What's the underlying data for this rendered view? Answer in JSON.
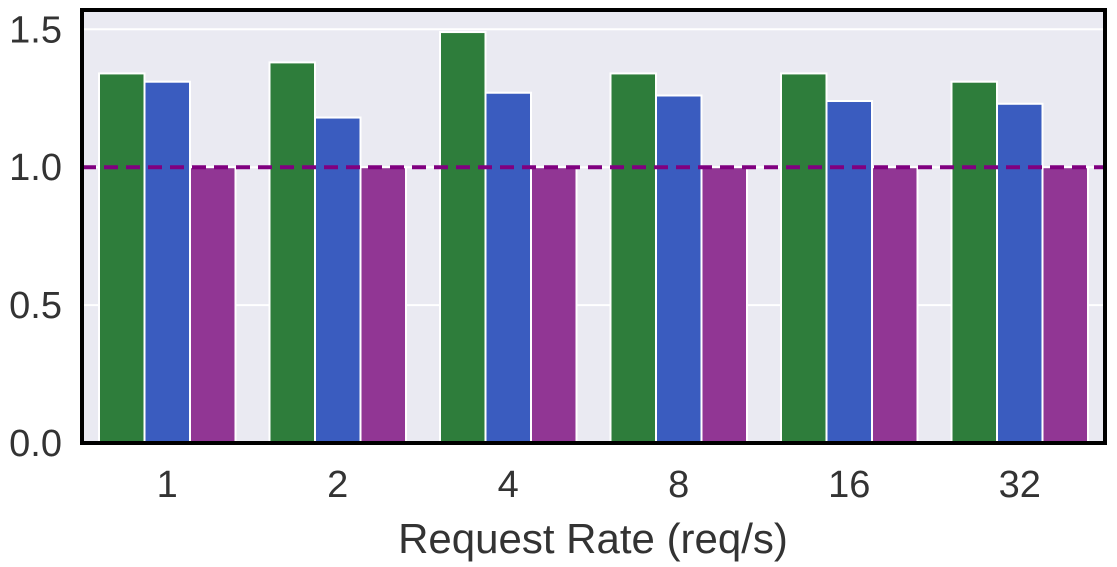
{
  "chart_data": {
    "type": "bar",
    "title": "",
    "xlabel": "Request Rate (req/s)",
    "ylabel": "",
    "categories": [
      "1",
      "2",
      "4",
      "8",
      "16",
      "32"
    ],
    "series": [
      {
        "values": [
          1.34,
          1.38,
          1.49,
          1.34,
          1.34,
          1.31
        ],
        "color": "#2e7d3b"
      },
      {
        "values": [
          1.31,
          1.18,
          1.27,
          1.26,
          1.24,
          1.23
        ],
        "color": "#3a5cbf"
      },
      {
        "values": [
          1.0,
          1.0,
          1.0,
          1.0,
          1.0,
          1.0
        ],
        "color": "#913694"
      }
    ],
    "ylim": [
      0,
      1.57
    ],
    "yticks": [
      "0.0",
      "0.5",
      "1.0",
      "1.5"
    ],
    "reference_line": {
      "y": 1.0,
      "color": "#800080",
      "style": "dashed"
    },
    "grid": true,
    "legend": "none",
    "colors": {
      "plot_background": "#eaeaf2",
      "grid": "#ffffff",
      "frame": "#000000"
    }
  }
}
